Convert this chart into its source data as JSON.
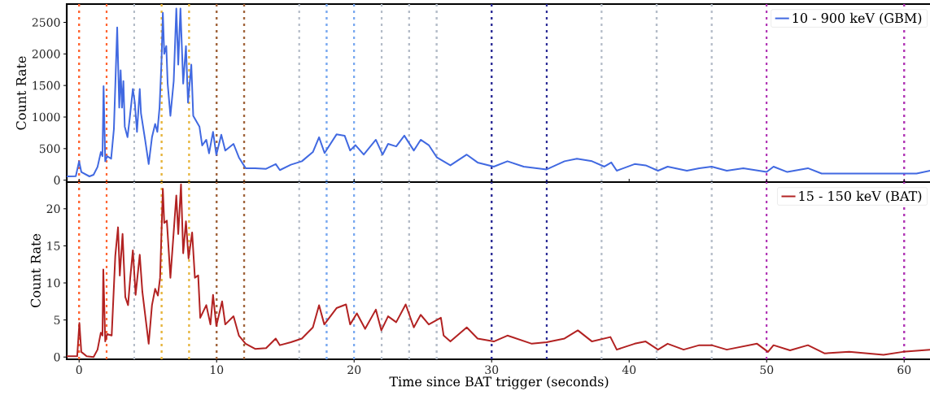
{
  "chart_data": [
    {
      "type": "line",
      "ylabel": "Count Rate",
      "xlim": [
        -0.9,
        62
      ],
      "ylim": [
        -30,
        2790
      ],
      "yticks": [
        0,
        500,
        1000,
        1500,
        2000,
        2500
      ],
      "tick_labels": "y",
      "legend": "top right",
      "line_style": "solid",
      "series": [
        {
          "name": "10 - 900 keV (GBM)",
          "color": "#4169e1",
          "x": [
            -0.9,
            -0.24,
            0,
            0.16,
            0.75,
            1.05,
            1.34,
            1.58,
            1.7,
            1.78,
            1.9,
            2.04,
            2.33,
            2.53,
            2.77,
            2.92,
            3.02,
            3.12,
            3.22,
            3.32,
            3.52,
            3.68,
            3.91,
            4.05,
            4.21,
            4.41,
            4.5,
            4.8,
            5.06,
            5.3,
            5.53,
            5.69,
            5.85,
            5.99,
            6.09,
            6.19,
            6.34,
            6.44,
            6.64,
            6.88,
            7.07,
            7.21,
            7.37,
            7.57,
            7.77,
            7.92,
            8.16,
            8.3,
            8.75,
            8.95,
            9.25,
            9.45,
            9.74,
            9.98,
            10.34,
            10.63,
            11.23,
            11.62,
            12.11,
            12.8,
            13.6,
            14.3,
            14.6,
            15.4,
            16.2,
            17,
            17.45,
            17.85,
            18.72,
            19.31,
            19.71,
            20.1,
            20.7,
            21.58,
            22.07,
            22.47,
            23.06,
            23.65,
            24.34,
            24.84,
            25.43,
            26.02,
            27.0,
            28.19,
            28.98,
            30.16,
            31.15,
            32.33,
            34.0,
            35.3,
            36.2,
            37.3,
            38.2,
            38.7,
            39.1,
            40.4,
            41.2,
            42.1,
            42.8,
            44.2,
            45.1,
            46.0,
            47.1,
            48.3,
            50.0,
            50.5,
            51.5,
            53.0,
            54.0,
            56.0,
            58.0,
            59.9,
            60.9,
            61.9
          ],
          "values": [
            60,
            64,
            300,
            130,
            60,
            85,
            210,
            445,
            380,
            1490,
            300,
            380,
            340,
            810,
            2420,
            1150,
            1740,
            1150,
            1570,
            850,
            680,
            980,
            1445,
            1230,
            765,
            1445,
            1060,
            640,
            255,
            680,
            890,
            765,
            1150,
            1870,
            2650,
            2000,
            2125,
            1530,
            1020,
            1570,
            2720,
            1830,
            2720,
            1530,
            2125,
            1230,
            1830,
            1020,
            850,
            550,
            640,
            425,
            765,
            400,
            720,
            470,
            575,
            360,
            190,
            190,
            180,
            255,
            160,
            245,
            300,
            445,
            680,
            430,
            725,
            705,
            470,
            555,
            405,
            640,
            405,
            575,
            535,
            705,
            470,
            640,
            555,
            360,
            235,
            405,
            280,
            215,
            300,
            215,
            170,
            300,
            340,
            300,
            215,
            280,
            150,
            255,
            235,
            150,
            215,
            150,
            190,
            215,
            150,
            190,
            130,
            215,
            130,
            190,
            105,
            105,
            105,
            105,
            105,
            150
          ]
        }
      ],
      "ref_lines": [
        {
          "axis": "x",
          "value": 0,
          "color": "#ff6633",
          "line_style": "dotted"
        },
        {
          "axis": "x",
          "value": 2,
          "color": "#ff6633",
          "line_style": "dotted"
        },
        {
          "axis": "x",
          "value": 4,
          "color": "#b4bcc8",
          "line_style": "dotted"
        },
        {
          "axis": "x",
          "value": 6,
          "color": "#e6b43c",
          "line_style": "dotted"
        },
        {
          "axis": "x",
          "value": 8,
          "color": "#e6b43c",
          "line_style": "dotted"
        },
        {
          "axis": "x",
          "value": 10,
          "color": "#a0643c",
          "line_style": "dotted"
        },
        {
          "axis": "x",
          "value": 12,
          "color": "#a0643c",
          "line_style": "dotted"
        },
        {
          "axis": "x",
          "value": 16,
          "color": "#b4bcc8",
          "line_style": "dotted"
        },
        {
          "axis": "x",
          "value": 18,
          "color": "#78a8f0",
          "line_style": "dotted"
        },
        {
          "axis": "x",
          "value": 20,
          "color": "#78a8f0",
          "line_style": "dotted"
        },
        {
          "axis": "x",
          "value": 22,
          "color": "#b4bcc8",
          "line_style": "dotted"
        },
        {
          "axis": "x",
          "value": 24,
          "color": "#b4bcc8",
          "line_style": "dotted"
        },
        {
          "axis": "x",
          "value": 26,
          "color": "#b4bcc8",
          "line_style": "dotted"
        },
        {
          "axis": "x",
          "value": 30,
          "color": "#2c2c96",
          "line_style": "dotted"
        },
        {
          "axis": "x",
          "value": 34,
          "color": "#2c2c96",
          "line_style": "dotted"
        },
        {
          "axis": "x",
          "value": 38,
          "color": "#b4bcc8",
          "line_style": "dotted"
        },
        {
          "axis": "x",
          "value": 42,
          "color": "#b4bcc8",
          "line_style": "dotted"
        },
        {
          "axis": "x",
          "value": 46,
          "color": "#b4bcc8",
          "line_style": "dotted"
        },
        {
          "axis": "x",
          "value": 50,
          "color": "#b034b4",
          "line_style": "dotted"
        },
        {
          "axis": "x",
          "value": 60,
          "color": "#b034b4",
          "line_style": "dotted"
        }
      ]
    },
    {
      "type": "line",
      "xlabel": "Time since BAT trigger (seconds)",
      "ylabel": "Count Rate",
      "xlim": [
        -0.9,
        62
      ],
      "ylim": [
        -0.3,
        23.6
      ],
      "xticks": [
        0,
        10,
        20,
        30,
        40,
        50,
        60
      ],
      "yticks": [
        0,
        5,
        10,
        15,
        20
      ],
      "legend": "top right",
      "line_style": "solid",
      "series": [
        {
          "name": "15 - 150 keV (BAT)",
          "color": "#b22222",
          "x": [
            -0.9,
            -0.14,
            0.02,
            0.16,
            0.55,
            1.05,
            1.34,
            1.58,
            1.7,
            1.76,
            1.9,
            2.04,
            2.37,
            2.63,
            2.83,
            2.96,
            3.16,
            3.36,
            3.56,
            3.72,
            3.91,
            4.11,
            4.41,
            4.6,
            5.06,
            5.3,
            5.53,
            5.73,
            5.89,
            6.09,
            6.19,
            6.38,
            6.64,
            7.07,
            7.21,
            7.41,
            7.57,
            7.77,
            7.96,
            8.22,
            8.42,
            8.66,
            8.81,
            9.25,
            9.55,
            9.74,
            9.98,
            10.4,
            10.63,
            11.23,
            11.62,
            12.11,
            12.8,
            13.6,
            14.3,
            14.6,
            15.4,
            16.2,
            17,
            17.45,
            17.83,
            18.72,
            19.41,
            19.71,
            20.2,
            20.8,
            21.58,
            21.98,
            22.47,
            23.06,
            23.75,
            24.34,
            24.84,
            25.43,
            26.31,
            26.51,
            27.0,
            28.19,
            28.98,
            30.16,
            31.15,
            32.92,
            34.0,
            35.3,
            36.27,
            37.3,
            38.64,
            39.1,
            40.4,
            41.2,
            42.1,
            42.8,
            43.96,
            45.1,
            46.0,
            47.1,
            49.3,
            50.1,
            50.5,
            51.7,
            53.0,
            54.2,
            56.0,
            58.5,
            59.9,
            61.9
          ],
          "values": [
            0.1,
            0.1,
            4.6,
            0.7,
            0.1,
            0,
            1.0,
            3.3,
            2.9,
            11.8,
            2.1,
            3.1,
            2.9,
            13.6,
            17.5,
            11.0,
            16.6,
            8.1,
            7.0,
            10.7,
            14.4,
            8.4,
            13.8,
            8.8,
            1.8,
            7.0,
            9.2,
            8.3,
            10.7,
            22.7,
            18.1,
            18.4,
            10.7,
            21.8,
            16.6,
            23.3,
            14.0,
            18.3,
            13.3,
            16.8,
            10.7,
            11.0,
            5.3,
            7.0,
            4.4,
            8.4,
            4.2,
            7.5,
            4.4,
            5.5,
            2.9,
            1.8,
            1.1,
            1.2,
            2.5,
            1.6,
            2.0,
            2.5,
            4.0,
            7.0,
            4.4,
            6.6,
            7.1,
            4.4,
            5.9,
            3.8,
            6.4,
            3.6,
            5.5,
            4.7,
            7.1,
            4.0,
            5.7,
            4.4,
            5.3,
            2.9,
            2.1,
            4.0,
            2.5,
            2.1,
            2.9,
            1.8,
            2.0,
            2.5,
            3.6,
            2.1,
            2.7,
            1.0,
            1.8,
            2.1,
            1.0,
            1.8,
            1.0,
            1.6,
            1.6,
            1.0,
            1.8,
            0.7,
            1.6,
            0.9,
            1.6,
            0.5,
            0.7,
            0.3,
            0.7,
            1.0
          ]
        }
      ],
      "ref_lines": [
        {
          "axis": "x",
          "value": 0,
          "color": "#ff6633",
          "line_style": "dotted"
        },
        {
          "axis": "x",
          "value": 2,
          "color": "#ff6633",
          "line_style": "dotted"
        },
        {
          "axis": "x",
          "value": 4,
          "color": "#b4bcc8",
          "line_style": "dotted"
        },
        {
          "axis": "x",
          "value": 6,
          "color": "#e6b43c",
          "line_style": "dotted"
        },
        {
          "axis": "x",
          "value": 8,
          "color": "#e6b43c",
          "line_style": "dotted"
        },
        {
          "axis": "x",
          "value": 10,
          "color": "#a0643c",
          "line_style": "dotted"
        },
        {
          "axis": "x",
          "value": 12,
          "color": "#a0643c",
          "line_style": "dotted"
        },
        {
          "axis": "x",
          "value": 16,
          "color": "#b4bcc8",
          "line_style": "dotted"
        },
        {
          "axis": "x",
          "value": 18,
          "color": "#78a8f0",
          "line_style": "dotted"
        },
        {
          "axis": "x",
          "value": 20,
          "color": "#78a8f0",
          "line_style": "dotted"
        },
        {
          "axis": "x",
          "value": 22,
          "color": "#b4bcc8",
          "line_style": "dotted"
        },
        {
          "axis": "x",
          "value": 24,
          "color": "#b4bcc8",
          "line_style": "dotted"
        },
        {
          "axis": "x",
          "value": 26,
          "color": "#b4bcc8",
          "line_style": "dotted"
        },
        {
          "axis": "x",
          "value": 30,
          "color": "#2c2c96",
          "line_style": "dotted"
        },
        {
          "axis": "x",
          "value": 34,
          "color": "#2c2c96",
          "line_style": "dotted"
        },
        {
          "axis": "x",
          "value": 38,
          "color": "#b4bcc8",
          "line_style": "dotted"
        },
        {
          "axis": "x",
          "value": 42,
          "color": "#b4bcc8",
          "line_style": "dotted"
        },
        {
          "axis": "x",
          "value": 46,
          "color": "#b4bcc8",
          "line_style": "dotted"
        },
        {
          "axis": "x",
          "value": 50,
          "color": "#b034b4",
          "line_style": "dotted"
        },
        {
          "axis": "x",
          "value": 60,
          "color": "#b034b4",
          "line_style": "dotted"
        }
      ]
    }
  ]
}
